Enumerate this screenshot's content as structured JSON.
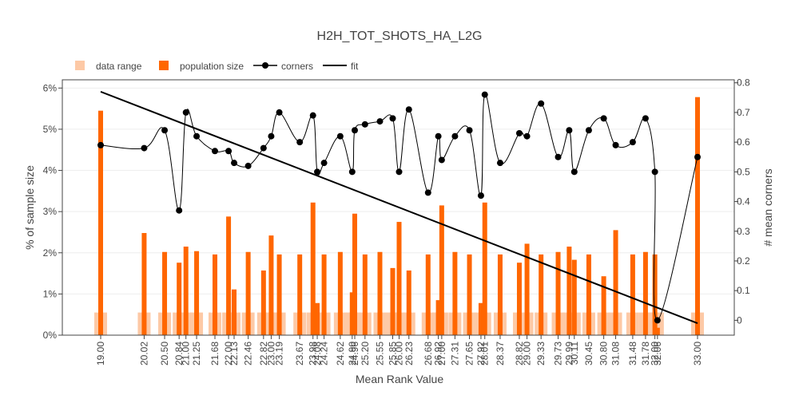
{
  "colors": {
    "range": "#fdc9a6",
    "population": "#ff6600",
    "corners": "#000000",
    "fit": "#000000",
    "grid": "#eeeeee",
    "axis": "#444444"
  },
  "chart_data": {
    "type": "bar",
    "title": "H2H_TOT_SHOTS_HA_L2G",
    "xlabel": "Mean Rank Value",
    "ylabel": "% of sample size",
    "y2label": "# mean corners",
    "xlim": [
      19,
      33
    ],
    "ylim": [
      0,
      6.2
    ],
    "y2lim": [
      -0.05,
      0.81
    ],
    "yticks": [
      {
        "value": 0,
        "label": "0%"
      },
      {
        "value": 1,
        "label": "1%"
      },
      {
        "value": 2,
        "label": "2%"
      },
      {
        "value": 3,
        "label": "3%"
      },
      {
        "value": 4,
        "label": "4%"
      },
      {
        "value": 5,
        "label": "5%"
      },
      {
        "value": 6,
        "label": "6%"
      }
    ],
    "y2ticks": [
      {
        "value": 0,
        "label": "0"
      },
      {
        "value": 0.1,
        "label": "0.1"
      },
      {
        "value": 0.2,
        "label": "0.2"
      },
      {
        "value": 0.3,
        "label": "0.3"
      },
      {
        "value": 0.4,
        "label": "0.4"
      },
      {
        "value": 0.5,
        "label": "0.5"
      },
      {
        "value": 0.6,
        "label": "0.6"
      },
      {
        "value": 0.7,
        "label": "0.7"
      },
      {
        "value": 0.8,
        "label": "0.8"
      }
    ],
    "x": [
      19.0,
      20.02,
      20.5,
      20.84,
      21.0,
      21.25,
      21.68,
      22.0,
      22.13,
      22.46,
      22.82,
      23.0,
      23.19,
      23.67,
      23.98,
      24.08,
      24.24,
      24.62,
      24.9,
      24.96,
      25.2,
      25.55,
      25.85,
      26.0,
      26.23,
      26.68,
      26.92,
      27.0,
      27.31,
      27.65,
      27.92,
      28.01,
      28.37,
      28.82,
      29.0,
      29.33,
      29.73,
      29.99,
      30.11,
      30.45,
      30.8,
      31.08,
      31.48,
      31.78,
      32.0,
      32.06,
      33.0
    ],
    "xtick_labels": [
      "19.00",
      "20.02",
      "20.50",
      "20.84",
      "21.00",
      "21.25",
      "21.68",
      "22.00",
      "22.13",
      "22.46",
      "22.82",
      "23.00",
      "23.19",
      "23.67",
      "23.98",
      "24.08",
      "24.24",
      "24.62",
      "24.90",
      "24.96",
      "25.20",
      "25.55",
      "25.85",
      "26.00",
      "26.23",
      "26.68",
      "26.92",
      "27.00",
      "27.31",
      "27.65",
      "27.92",
      "28.01",
      "28.37",
      "28.82",
      "29.00",
      "29.33",
      "29.73",
      "29.99",
      "30.11",
      "30.45",
      "30.80",
      "31.08",
      "31.48",
      "31.78",
      "32.00",
      "32.06",
      "33.00"
    ],
    "series": [
      {
        "name": "data range",
        "type": "bar",
        "values": [
          0.55,
          0.55,
          0.55,
          0.55,
          0.55,
          0.55,
          0.55,
          0.55,
          0.55,
          0.55,
          0.55,
          0.55,
          0.55,
          0.55,
          0.55,
          0.55,
          0.55,
          0.55,
          0.55,
          0.55,
          0.55,
          0.55,
          0.55,
          0.55,
          0.55,
          0.55,
          0.55,
          0.55,
          0.55,
          0.55,
          0.55,
          0.55,
          0.55,
          0.55,
          0.55,
          0.55,
          0.55,
          0.55,
          0.55,
          0.55,
          0.55,
          0.55,
          0.55,
          0.55,
          0.55,
          0.55,
          0.55
        ]
      },
      {
        "name": "population size",
        "type": "bar",
        "values": [
          5.45,
          2.48,
          2.02,
          1.76,
          2.15,
          2.04,
          1.96,
          2.88,
          1.11,
          2.02,
          1.57,
          2.42,
          1.96,
          1.96,
          3.22,
          0.78,
          1.96,
          2.02,
          1.04,
          2.95,
          1.96,
          2.02,
          1.63,
          2.75,
          1.57,
          1.96,
          0.85,
          3.15,
          2.02,
          1.96,
          0.78,
          3.22,
          1.96,
          1.76,
          2.22,
          1.96,
          2.02,
          2.15,
          1.83,
          1.96,
          1.43,
          2.55,
          1.96,
          2.02,
          1.96,
          0.18,
          5.78
        ]
      },
      {
        "name": "corners",
        "type": "line",
        "values": [
          0.59,
          0.58,
          0.64,
          0.37,
          0.7,
          0.62,
          0.57,
          0.57,
          0.53,
          0.52,
          0.58,
          0.62,
          0.7,
          0.6,
          0.69,
          0.5,
          0.53,
          0.62,
          0.5,
          0.64,
          0.66,
          0.67,
          0.68,
          0.5,
          0.71,
          0.43,
          0.62,
          0.54,
          0.62,
          0.64,
          0.42,
          0.76,
          0.53,
          0.63,
          0.62,
          0.73,
          0.55,
          0.64,
          0.5,
          0.64,
          0.68,
          0.59,
          0.6,
          0.68,
          0.5,
          0.0,
          0.55
        ]
      },
      {
        "name": "fit",
        "type": "line",
        "x": [
          19.0,
          33.0
        ],
        "values": [
          0.77,
          -0.01
        ]
      }
    ],
    "legend": {
      "position": "top-left",
      "entries": [
        "data range",
        "population size",
        "corners",
        "fit"
      ]
    },
    "grid": true
  }
}
